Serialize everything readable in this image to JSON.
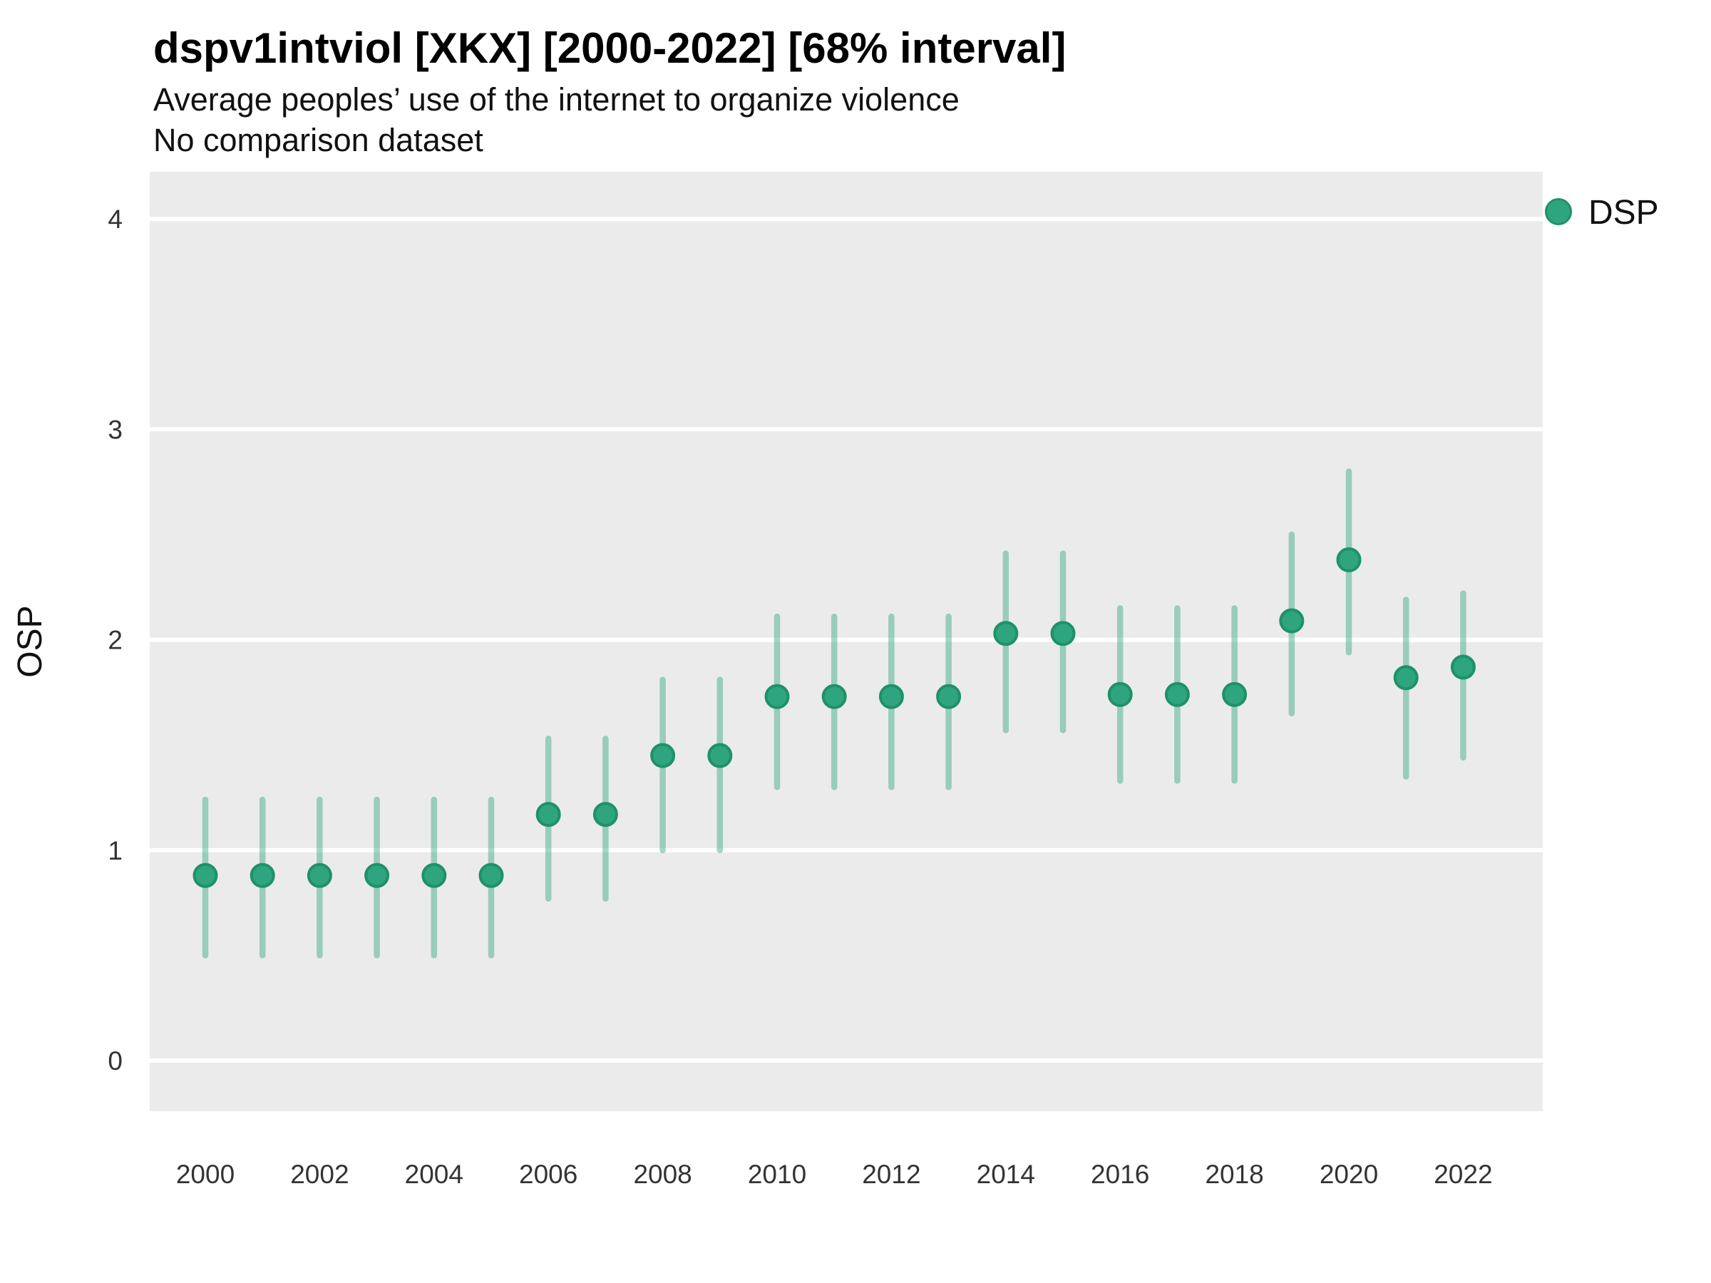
{
  "title": "dspv1intviol [XKX] [2000-2022] [68% interval]",
  "subtitle_line1": "Average peoples’ use of the internet to organize violence",
  "subtitle_line2": "No comparison dataset",
  "y_axis_title": "OSP",
  "legend": {
    "label": "DSP",
    "marker": "circle-icon"
  },
  "colors": {
    "panel_background": "#ebebeb",
    "gridline": "#ffffff",
    "point_fill": "#2ea57f",
    "point_stroke": "#1f9168",
    "interval_line": "#35a783",
    "title_text": "#000000",
    "axis_text": "#333333"
  },
  "chart_data": {
    "type": "scatter",
    "subtype": "pointrange",
    "title": "dspv1intviol [XKX] [2000-2022] [68% interval]",
    "subtitle": [
      "Average peoples’ use of the internet to organize violence",
      "No comparison dataset"
    ],
    "xlabel": "",
    "ylabel": "OSP",
    "interval_level": "68%",
    "legend_position": "right",
    "grid": "horizontal-major-only",
    "ylim": [
      -0.24,
      4.23
    ],
    "yticks": [
      0,
      1,
      2,
      3,
      4
    ],
    "ytick_labels": [
      "0",
      "1",
      "2",
      "3",
      "4"
    ],
    "xticks": [
      2000,
      2002,
      2004,
      2006,
      2008,
      2010,
      2012,
      2014,
      2016,
      2018,
      2020,
      2022
    ],
    "xtick_labels": [
      "2000",
      "2002",
      "2004",
      "2006",
      "2008",
      "2010",
      "2012",
      "2014",
      "2016",
      "2018",
      "2020",
      "2022"
    ],
    "x": [
      2000,
      2001,
      2002,
      2003,
      2004,
      2005,
      2006,
      2007,
      2008,
      2009,
      2010,
      2011,
      2012,
      2013,
      2014,
      2015,
      2016,
      2017,
      2018,
      2019,
      2020,
      2021,
      2022
    ],
    "series": [
      {
        "name": "DSP",
        "values": [
          0.88,
          0.88,
          0.88,
          0.88,
          0.88,
          0.88,
          1.17,
          1.17,
          1.45,
          1.45,
          1.73,
          1.73,
          1.73,
          1.73,
          2.03,
          2.03,
          1.74,
          1.74,
          1.74,
          2.09,
          2.38,
          1.82,
          1.87
        ],
        "interval_low": [
          0.5,
          0.5,
          0.5,
          0.5,
          0.5,
          0.5,
          0.77,
          0.77,
          1.0,
          1.0,
          1.3,
          1.3,
          1.3,
          1.3,
          1.57,
          1.57,
          1.33,
          1.33,
          1.33,
          1.65,
          1.94,
          1.35,
          1.44
        ],
        "interval_high": [
          1.24,
          1.24,
          1.24,
          1.24,
          1.24,
          1.24,
          1.53,
          1.53,
          1.81,
          1.81,
          2.11,
          2.11,
          2.11,
          2.11,
          2.41,
          2.41,
          2.15,
          2.15,
          2.15,
          2.5,
          2.8,
          2.19,
          2.22
        ]
      }
    ]
  }
}
